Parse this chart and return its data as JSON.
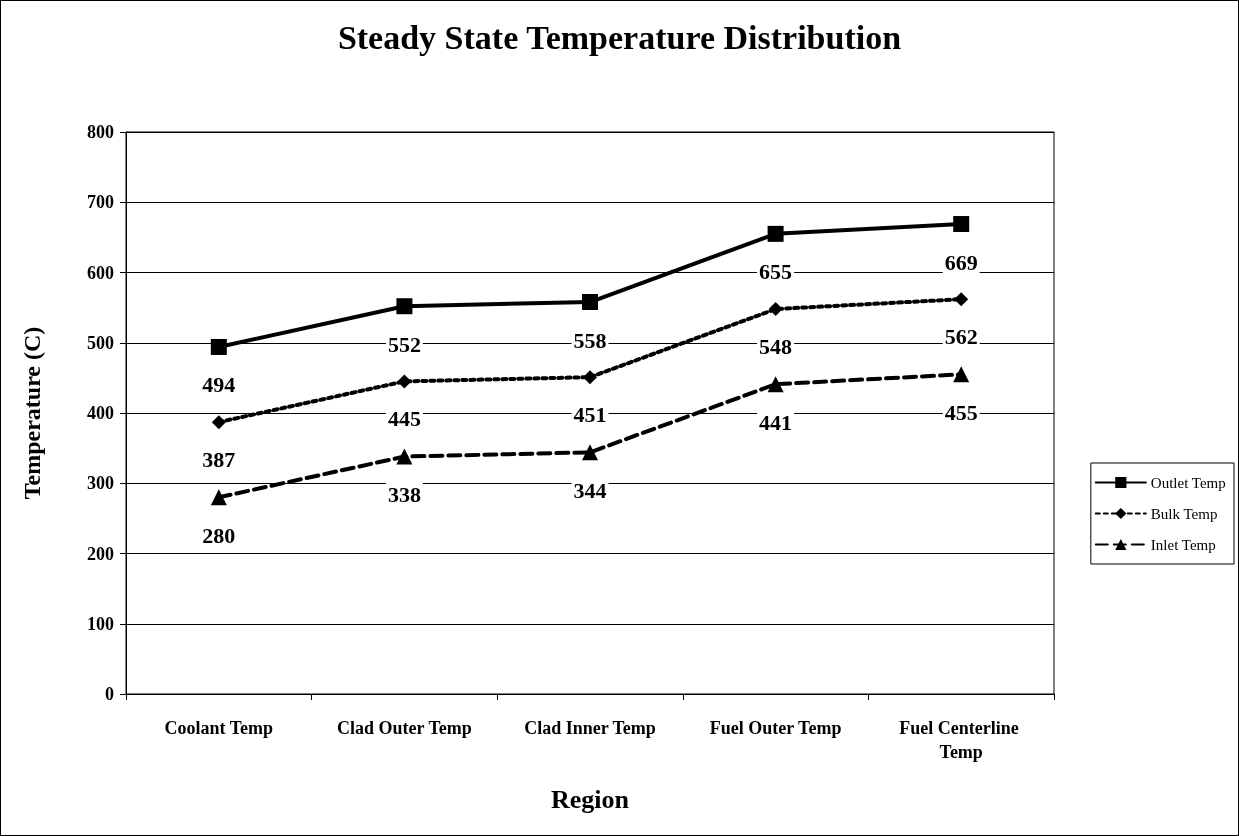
{
  "chart_data": {
    "type": "line",
    "title": "Steady State Temperature Distribution",
    "xlabel": "Region",
    "ylabel": "Temperature (C)",
    "categories": [
      "Coolant Temp",
      "Clad Outer Temp",
      "Clad Inner Temp",
      "Fuel Outer Temp",
      "Fuel Centerline Temp"
    ],
    "series": [
      {
        "name": "Outlet Temp",
        "color": "#000000",
        "marker": "square",
        "line_style": "solid",
        "values": [
          494,
          552,
          558,
          655,
          669
        ]
      },
      {
        "name": "Bulk Temp",
        "color": "#000000",
        "marker": "diamond",
        "line_style": "dotted",
        "values": [
          387,
          445,
          451,
          548,
          562
        ]
      },
      {
        "name": "Inlet Temp",
        "color": "#000000",
        "marker": "triangle",
        "line_style": "dashed",
        "values": [
          280,
          338,
          344,
          441,
          455
        ]
      }
    ],
    "ylim": [
      0,
      800
    ],
    "yticks": [
      0,
      100,
      200,
      300,
      400,
      500,
      600,
      700,
      800
    ],
    "grid": "y",
    "legend": "right",
    "data_labels": true
  }
}
